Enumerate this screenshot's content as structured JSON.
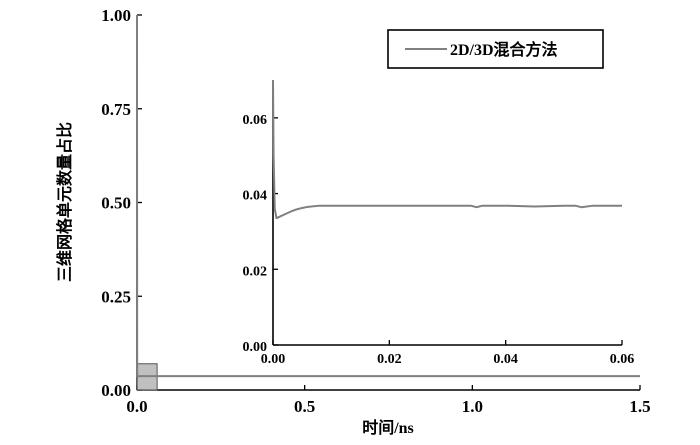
{
  "chart_data": [
    {
      "type": "line",
      "name": "main",
      "xlabel": "时间/ns",
      "ylabel": "三维网格单元数量占比",
      "xlim": [
        0,
        1.5
      ],
      "ylim": [
        0,
        1.0
      ],
      "xticks": [
        "0.0",
        "0.5",
        "1.0",
        "1.5"
      ],
      "yticks": [
        "0.00",
        "0.25",
        "0.50",
        "0.75",
        "1.00"
      ],
      "legend": {
        "position": "top-right",
        "entries": [
          "2D/3D混合方法"
        ]
      },
      "grid": false,
      "highlight_box": {
        "x": [
          0,
          0.06
        ],
        "y": [
          0,
          0.07
        ]
      },
      "series": [
        {
          "name": "2D/3D混合方法",
          "color": "#808080",
          "x": [
            0,
            0.0002,
            0.0005,
            0.001,
            0.003,
            0.006,
            0.01,
            0.02,
            0.05,
            0.1,
            0.3,
            0.5,
            0.8,
            1.0,
            1.2,
            1.5
          ],
          "y": [
            1.0,
            0.5,
            0.05,
            0.035,
            0.036,
            0.037,
            0.037,
            0.037,
            0.037,
            0.037,
            0.037,
            0.037,
            0.037,
            0.037,
            0.037,
            0.037
          ]
        }
      ]
    },
    {
      "type": "line",
      "name": "inset",
      "xlim": [
        0,
        0.06
      ],
      "ylim": [
        0,
        0.07
      ],
      "xticks": [
        "0.00",
        "0.02",
        "0.04",
        "0.06"
      ],
      "yticks": [
        "0.00",
        "0.02",
        "0.04",
        "0.06"
      ],
      "series": [
        {
          "name": "2D/3D混合方法",
          "color": "#808080",
          "x": [
            0,
            0.0001,
            0.0003,
            0.0006,
            0.001,
            0.002,
            0.003,
            0.004,
            0.005,
            0.006,
            0.008,
            0.01,
            0.015,
            0.02,
            0.025,
            0.03,
            0.034,
            0.035,
            0.036,
            0.04,
            0.045,
            0.05,
            0.052,
            0.053,
            0.055,
            0.058,
            0.06
          ],
          "y": [
            0.07,
            0.05,
            0.036,
            0.0335,
            0.0338,
            0.0345,
            0.0352,
            0.0358,
            0.0362,
            0.0365,
            0.0368,
            0.0368,
            0.0368,
            0.0368,
            0.0368,
            0.0368,
            0.0368,
            0.0364,
            0.0368,
            0.0368,
            0.0366,
            0.0368,
            0.0368,
            0.0364,
            0.0368,
            0.0368,
            0.0368
          ]
        }
      ]
    }
  ]
}
